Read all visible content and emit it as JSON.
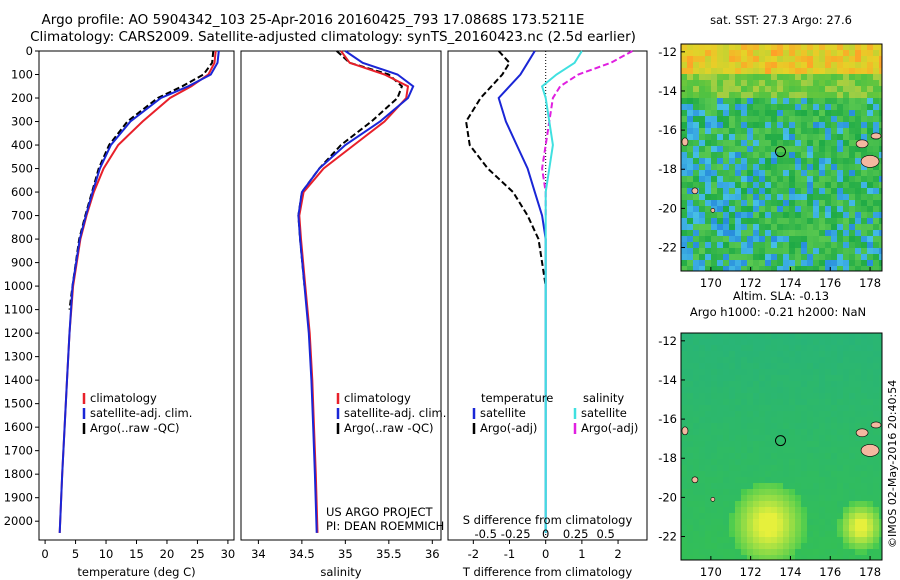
{
  "titles": {
    "line1": "Argo profile: AO 5904342_103 25-Apr-2016 20160425_793 17.0868S 173.5211E",
    "line2": "Climatology: CARS2009. Satellite-adjusted climatology: synTS_20160423.nc (2.5d earlier)"
  },
  "stamp": "©IMOS 02-May-2016 20:40:54",
  "project": {
    "line1": "US ARGO PROJECT",
    "line2": "PI: DEAN ROEMMICH"
  },
  "colors": {
    "climatology": "#e8202a",
    "satellite": "#1a26d6",
    "argo": "#000000",
    "sal_satellite": "#40e0e0",
    "sal_argo": "#e020e0"
  },
  "chart_data": [
    {
      "type": "line",
      "xlabel": "temperature (deg C)",
      "xlim": [
        -1,
        31
      ],
      "ylim": [
        0,
        2080
      ],
      "xticks": [
        0,
        5,
        10,
        15,
        20,
        25,
        30
      ],
      "yticks": [
        0,
        100,
        200,
        300,
        400,
        500,
        600,
        700,
        800,
        900,
        1000,
        1100,
        1200,
        1300,
        1400,
        1500,
        1600,
        1700,
        1800,
        1900,
        2000
      ],
      "legend": [
        "climatology",
        "satellite-adj. clim.",
        "Argo(..raw -QC)"
      ],
      "series": [
        {
          "name": "climatology",
          "x": [
            28.0,
            27.8,
            26.8,
            24.0,
            20.5,
            16.0,
            12.0,
            9.6,
            8.0,
            6.8,
            5.8,
            4.6,
            4.0,
            3.6,
            3.2,
            2.8,
            2.4
          ],
          "y": [
            0,
            50,
            100,
            150,
            200,
            300,
            400,
            500,
            600,
            700,
            800,
            1000,
            1200,
            1400,
            1600,
            1800,
            2050
          ]
        },
        {
          "name": "satellite-adj. clim.",
          "x": [
            28.5,
            28.3,
            27.2,
            23.5,
            19.0,
            14.0,
            10.8,
            9.0,
            7.8,
            6.7,
            5.7,
            4.5,
            4.0,
            3.6,
            3.2,
            2.8,
            2.4
          ],
          "y": [
            0,
            50,
            100,
            150,
            200,
            300,
            400,
            500,
            600,
            700,
            800,
            1000,
            1200,
            1400,
            1600,
            1800,
            2050
          ]
        },
        {
          "name": "Argo(..raw -QC)",
          "x": [
            27.6,
            27.4,
            26.0,
            22.5,
            18.5,
            13.5,
            10.5,
            8.8,
            7.7,
            6.6,
            5.6,
            4.5,
            4.0
          ],
          "y": [
            0,
            50,
            100,
            150,
            200,
            300,
            400,
            500,
            600,
            700,
            800,
            1000,
            1100
          ]
        }
      ]
    },
    {
      "type": "line",
      "xlabel": "salinity",
      "xlim": [
        33.8,
        36.1
      ],
      "ylim": [
        0,
        2080
      ],
      "xticks": [
        34,
        34.5,
        35,
        35.5,
        36
      ],
      "legend": [
        "climatology",
        "satellite-adj. clim.",
        "Argo(..raw -QC)"
      ],
      "series": [
        {
          "name": "climatology",
          "x": [
            34.95,
            35.05,
            35.45,
            35.72,
            35.7,
            35.45,
            35.1,
            34.75,
            34.52,
            34.47,
            34.49,
            34.54,
            34.59,
            34.62,
            34.64,
            34.66,
            34.68
          ],
          "y": [
            0,
            50,
            100,
            150,
            200,
            300,
            400,
            500,
            600,
            700,
            800,
            1000,
            1200,
            1400,
            1600,
            1800,
            2050
          ]
        },
        {
          "name": "satellite-adj. clim.",
          "x": [
            35.0,
            35.2,
            35.6,
            35.78,
            35.72,
            35.4,
            35.0,
            34.7,
            34.5,
            34.46,
            34.48,
            34.53,
            34.58,
            34.61,
            34.63,
            34.65,
            34.67
          ],
          "y": [
            0,
            50,
            100,
            150,
            200,
            300,
            400,
            500,
            600,
            700,
            800,
            1000,
            1200,
            1400,
            1600,
            1800,
            2050
          ]
        },
        {
          "name": "Argo(..raw -QC)",
          "x": [
            34.9,
            35.05,
            35.5,
            35.65,
            35.6,
            35.3,
            34.95,
            34.7,
            34.5,
            34.46,
            34.48,
            34.53
          ],
          "y": [
            0,
            50,
            100,
            150,
            200,
            300,
            400,
            500,
            600,
            700,
            800,
            1000
          ]
        }
      ]
    },
    {
      "type": "line",
      "xlabel": "T difference from climatology",
      "xlabel2": "S difference from climatology",
      "xlim": [
        -2.7,
        2.8
      ],
      "ylim": [
        0,
        2080
      ],
      "xticks": [
        -2,
        -1,
        0,
        1,
        2
      ],
      "xticks2": [
        -0.5,
        -0.25,
        0,
        0.25,
        0.5
      ],
      "legend": {
        "temperature": "temperature",
        "salinity": "salinity",
        "satellite": "satellite",
        "argo": "Argo(-adj)"
      },
      "series": [
        {
          "name": "T satellite",
          "x": [
            -0.3,
            -0.5,
            -0.7,
            -1.0,
            -1.3,
            -1.1,
            -0.8,
            -0.5,
            -0.3,
            -0.1,
            0.0,
            0.0,
            0.0,
            0.0
          ],
          "y": [
            0,
            50,
            100,
            150,
            200,
            300,
            400,
            500,
            600,
            700,
            800,
            1000,
            1400,
            2050
          ]
        },
        {
          "name": "T Argo(-adj)",
          "x": [
            -1.3,
            -1.0,
            -1.2,
            -1.5,
            -1.8,
            -2.2,
            -2.1,
            -1.6,
            -0.9,
            -0.5,
            -0.2,
            0.0
          ],
          "y": [
            0,
            50,
            100,
            150,
            200,
            300,
            400,
            500,
            600,
            700,
            800,
            1000
          ]
        },
        {
          "name": "S satellite",
          "x": [
            1.0,
            0.8,
            0.3,
            -0.1,
            0.0,
            0.1,
            0.2,
            0.1,
            0.0,
            0.0,
            0.0,
            0.0
          ],
          "y": [
            0,
            50,
            100,
            150,
            200,
            300,
            400,
            500,
            600,
            700,
            1000,
            2050
          ]
        },
        {
          "name": "S Argo(-adj)",
          "x": [
            2.4,
            1.8,
            0.9,
            0.4,
            0.2,
            0.1,
            0.0,
            -0.1,
            0.0,
            0.0
          ],
          "y": [
            0,
            50,
            100,
            150,
            200,
            300,
            400,
            500,
            600,
            700
          ]
        }
      ]
    },
    {
      "type": "heatmap",
      "title": "sat. SST: 27.3 Argo: 27.6",
      "xlim": [
        168.5,
        178.6
      ],
      "ylim": [
        -23.2,
        -11.6
      ],
      "xticks": [
        170,
        172,
        174,
        176,
        178
      ],
      "yticks": [
        -12,
        -14,
        -16,
        -18,
        -20,
        -22
      ],
      "marker": [
        173.5,
        -17.1
      ]
    },
    {
      "type": "heatmap",
      "title": "Altim. SLA: -0.13",
      "subtitle": "Argo h1000: -0.21 h2000: NaN",
      "xlim": [
        168.5,
        178.6
      ],
      "ylim": [
        -23.2,
        -11.6
      ],
      "xticks": [
        170,
        172,
        174,
        176,
        178
      ],
      "yticks": [
        -12,
        -14,
        -16,
        -18,
        -20,
        -22
      ],
      "marker": [
        173.5,
        -17.1
      ]
    }
  ]
}
